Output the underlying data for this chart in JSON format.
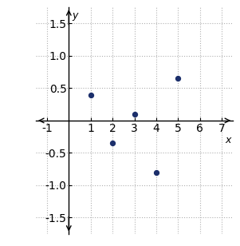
{
  "points_x": [
    1,
    2,
    3,
    4,
    5
  ],
  "points_y": [
    0.4,
    -0.35,
    0.1,
    -0.8,
    0.65
  ],
  "xlim": [
    -1.5,
    7.5
  ],
  "ylim": [
    -1.75,
    1.75
  ],
  "xticks": [
    -1,
    1,
    2,
    3,
    4,
    5,
    6,
    7
  ],
  "yticks": [
    -1.5,
    -1.0,
    -0.5,
    0.5,
    1.0,
    1.5
  ],
  "xlabel": "x",
  "ylabel": "y",
  "dot_color": "#1c2f6b",
  "dot_size": 18,
  "grid_color": "#b0b0b0",
  "axis_color": "#000000",
  "background_color": "#ffffff",
  "tick_fontsize": 7,
  "label_fontsize": 9
}
